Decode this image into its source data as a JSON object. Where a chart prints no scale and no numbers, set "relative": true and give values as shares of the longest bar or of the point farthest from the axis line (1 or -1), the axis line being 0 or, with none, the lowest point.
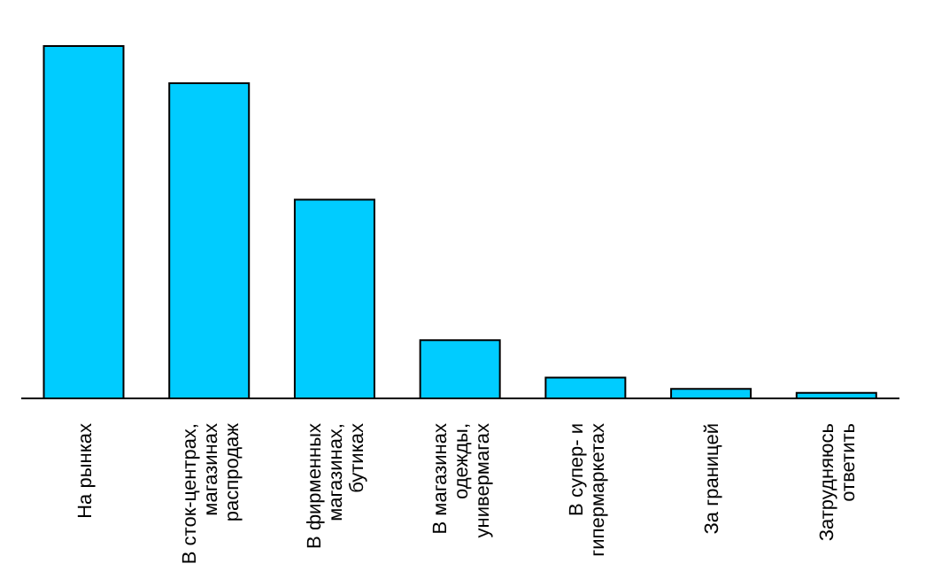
{
  "chart_data": {
    "type": "bar",
    "relative": true,
    "categories": [
      "На рынках",
      "В сток-центрах, магазинах распродаж",
      "В фирменных магазинах, бутиках",
      "В магазинах одежды, универмагах",
      "В супер- и гипермаркетах",
      "За границей",
      "Затрудняюсь ответить"
    ],
    "values": [
      1,
      0.894,
      0.564,
      0.165,
      0.059,
      0.027,
      0.016
    ],
    "color": "#00ccff"
  }
}
